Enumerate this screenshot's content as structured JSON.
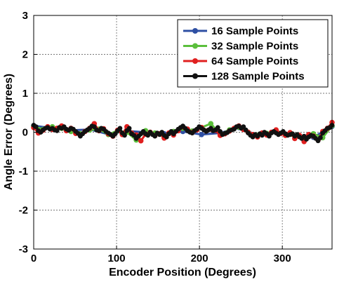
{
  "chart_data": {
    "type": "line",
    "title": "",
    "xlabel": "Encoder Position (Degrees)",
    "ylabel": "Angle Error (Degrees)",
    "xlim": [
      0,
      360
    ],
    "ylim": [
      -3,
      3
    ],
    "xticks": [
      0,
      100,
      200,
      300
    ],
    "yticks": [
      -3,
      -2,
      -1,
      0,
      1,
      2,
      3
    ],
    "grid": true,
    "legend_position": "top-right",
    "series": [
      {
        "name": "16 Sample Points",
        "color": "#2e4fa3",
        "x": [
          0,
          22.5,
          45,
          67.5,
          90,
          112.5,
          135,
          157.5,
          180,
          202.5,
          225,
          247.5,
          270,
          292.5,
          315,
          337.5,
          360
        ],
        "y": [
          0.17,
          0.1,
          0.05,
          0.07,
          -0.05,
          0.03,
          0.0,
          -0.04,
          0.02,
          -0.06,
          -0.02,
          0.12,
          -0.08,
          0.02,
          -0.09,
          -0.13,
          0.15
        ]
      },
      {
        "name": "32 Sample Points",
        "color": "#5bbf3c",
        "x": [
          0,
          11.25,
          22.5,
          33.75,
          45,
          56.25,
          67.5,
          78.75,
          90,
          101.25,
          112.5,
          123.75,
          135,
          146.25,
          157.5,
          168.75,
          180,
          191.25,
          202.5,
          213.75,
          225,
          236.25,
          247.5,
          258.75,
          270,
          281.25,
          292.5,
          303.75,
          315,
          326.25,
          337.5,
          348.75,
          360
        ],
        "y": [
          0.16,
          0.07,
          0.14,
          0.1,
          0.02,
          -0.04,
          0.06,
          0.08,
          -0.06,
          0.04,
          0.0,
          -0.2,
          0.04,
          -0.02,
          -0.12,
          0.02,
          0.1,
          0.03,
          0.12,
          0.22,
          -0.05,
          0.06,
          0.13,
          0.0,
          -0.08,
          -0.03,
          0.05,
          -0.07,
          -0.1,
          -0.18,
          -0.04,
          -0.14,
          0.17
        ]
      },
      {
        "name": "64 Sample Points",
        "color": "#e01f1f",
        "x": [
          0,
          5.625,
          11.25,
          16.875,
          22.5,
          28.125,
          33.75,
          39.375,
          45,
          50.625,
          56.25,
          61.875,
          67.5,
          73.125,
          78.75,
          84.375,
          90,
          95.625,
          101.25,
          106.875,
          112.5,
          118.125,
          123.75,
          129.375,
          135,
          140.625,
          146.25,
          151.875,
          157.5,
          163.125,
          168.75,
          174.375,
          180,
          185.625,
          191.25,
          196.875,
          202.5,
          208.125,
          213.75,
          219.375,
          225,
          230.625,
          236.25,
          241.875,
          247.5,
          253.125,
          258.75,
          264.375,
          270,
          275.625,
          281.25,
          286.875,
          292.5,
          298.125,
          303.75,
          309.375,
          315,
          320.625,
          326.25,
          331.875,
          337.5,
          343.125,
          348.75,
          354.375,
          360
        ],
        "y": [
          0.12,
          -0.02,
          0.05,
          0.14,
          0.07,
          0.1,
          0.16,
          0.04,
          0.1,
          -0.03,
          -0.08,
          0.02,
          0.1,
          0.22,
          0.04,
          0.09,
          -0.04,
          -0.1,
          0.05,
          -0.06,
          0.14,
          -0.02,
          -0.07,
          -0.22,
          -0.05,
          0.0,
          -0.09,
          -0.04,
          -0.15,
          -0.02,
          -0.07,
          0.04,
          0.14,
          0.08,
          -0.01,
          0.06,
          0.12,
          0.03,
          0.08,
          0.05,
          -0.08,
          -0.04,
          0.03,
          0.1,
          0.16,
          0.07,
          0.0,
          -0.06,
          -0.12,
          -0.02,
          -0.07,
          0.0,
          0.06,
          -0.03,
          -0.08,
          -0.01,
          -0.16,
          -0.08,
          -0.24,
          -0.06,
          -0.1,
          -0.2,
          0.02,
          0.1,
          0.25
        ]
      },
      {
        "name": "128 Sample Points",
        "color": "#111111",
        "x": [
          0,
          2.8125,
          5.625,
          8.4375,
          11.25,
          14.0625,
          16.875,
          19.6875,
          22.5,
          25.3125,
          28.125,
          30.9375,
          33.75,
          36.5625,
          39.375,
          42.1875,
          45,
          47.8125,
          50.625,
          53.4375,
          56.25,
          59.0625,
          61.875,
          64.6875,
          67.5,
          70.3125,
          73.125,
          75.9375,
          78.75,
          81.5625,
          84.375,
          87.1875,
          90,
          92.8125,
          95.625,
          98.4375,
          101.25,
          104.0625,
          106.875,
          109.6875,
          112.5,
          115.3125,
          118.125,
          120.9375,
          123.75,
          126.5625,
          129.375,
          132.1875,
          135,
          137.8125,
          140.625,
          143.4375,
          146.25,
          149.0625,
          151.875,
          154.6875,
          157.5,
          160.3125,
          163.125,
          165.9375,
          168.75,
          171.5625,
          174.375,
          177.1875,
          180,
          182.8125,
          185.625,
          188.4375,
          191.25,
          194.0625,
          196.875,
          199.6875,
          202.5,
          205.3125,
          208.125,
          210.9375,
          213.75,
          216.5625,
          219.375,
          222.1875,
          225,
          227.8125,
          230.625,
          233.4375,
          236.25,
          239.0625,
          241.875,
          244.6875,
          247.5,
          250.3125,
          253.125,
          255.9375,
          258.75,
          261.5625,
          264.375,
          267.1875,
          270,
          272.8125,
          275.625,
          278.4375,
          281.25,
          284.0625,
          286.875,
          289.6875,
          292.5,
          295.3125,
          298.125,
          300.9375,
          303.75,
          306.5625,
          309.375,
          312.1875,
          315,
          317.8125,
          320.625,
          323.4375,
          326.25,
          329.0625,
          331.875,
          334.6875,
          337.5,
          340.3125,
          343.125,
          345.9375,
          348.75,
          351.5625,
          354.375,
          357.1875,
          360
        ],
        "y": [
          0.18,
          0.14,
          0.04,
          0.0,
          0.06,
          0.1,
          0.12,
          0.08,
          0.1,
          0.06,
          0.04,
          0.12,
          0.1,
          0.14,
          0.08,
          0.05,
          0.1,
          0.08,
          0.02,
          -0.03,
          -0.1,
          -0.04,
          0.02,
          0.06,
          0.1,
          0.16,
          0.14,
          0.06,
          0.04,
          0.1,
          0.08,
          0.02,
          -0.02,
          -0.06,
          -0.1,
          -0.04,
          0.04,
          0.1,
          -0.02,
          -0.08,
          0.04,
          0.1,
          -0.04,
          -0.08,
          -0.16,
          -0.1,
          -0.04,
          0.02,
          -0.04,
          -0.08,
          0.0,
          -0.06,
          -0.1,
          -0.02,
          -0.06,
          0.0,
          -0.08,
          -0.12,
          -0.04,
          0.02,
          -0.04,
          0.02,
          0.08,
          0.12,
          0.16,
          0.1,
          0.04,
          0.0,
          -0.02,
          0.04,
          0.08,
          0.14,
          0.1,
          0.06,
          0.02,
          0.06,
          0.1,
          0.04,
          0.06,
          0.12,
          0.02,
          -0.06,
          -0.03,
          -0.01,
          0.04,
          0.06,
          0.08,
          0.14,
          0.16,
          0.1,
          0.14,
          0.06,
          -0.02,
          -0.08,
          -0.12,
          -0.06,
          -0.1,
          -0.04,
          -0.08,
          0.0,
          -0.04,
          -0.1,
          -0.02,
          0.02,
          -0.02,
          -0.06,
          -0.02,
          0.02,
          -0.04,
          -0.08,
          -0.06,
          -0.04,
          -0.1,
          -0.06,
          -0.12,
          -0.16,
          -0.1,
          -0.18,
          -0.12,
          -0.08,
          -0.1,
          -0.16,
          -0.22,
          -0.14,
          -0.02,
          0.04,
          0.1,
          0.12,
          0.18
        ]
      }
    ]
  }
}
